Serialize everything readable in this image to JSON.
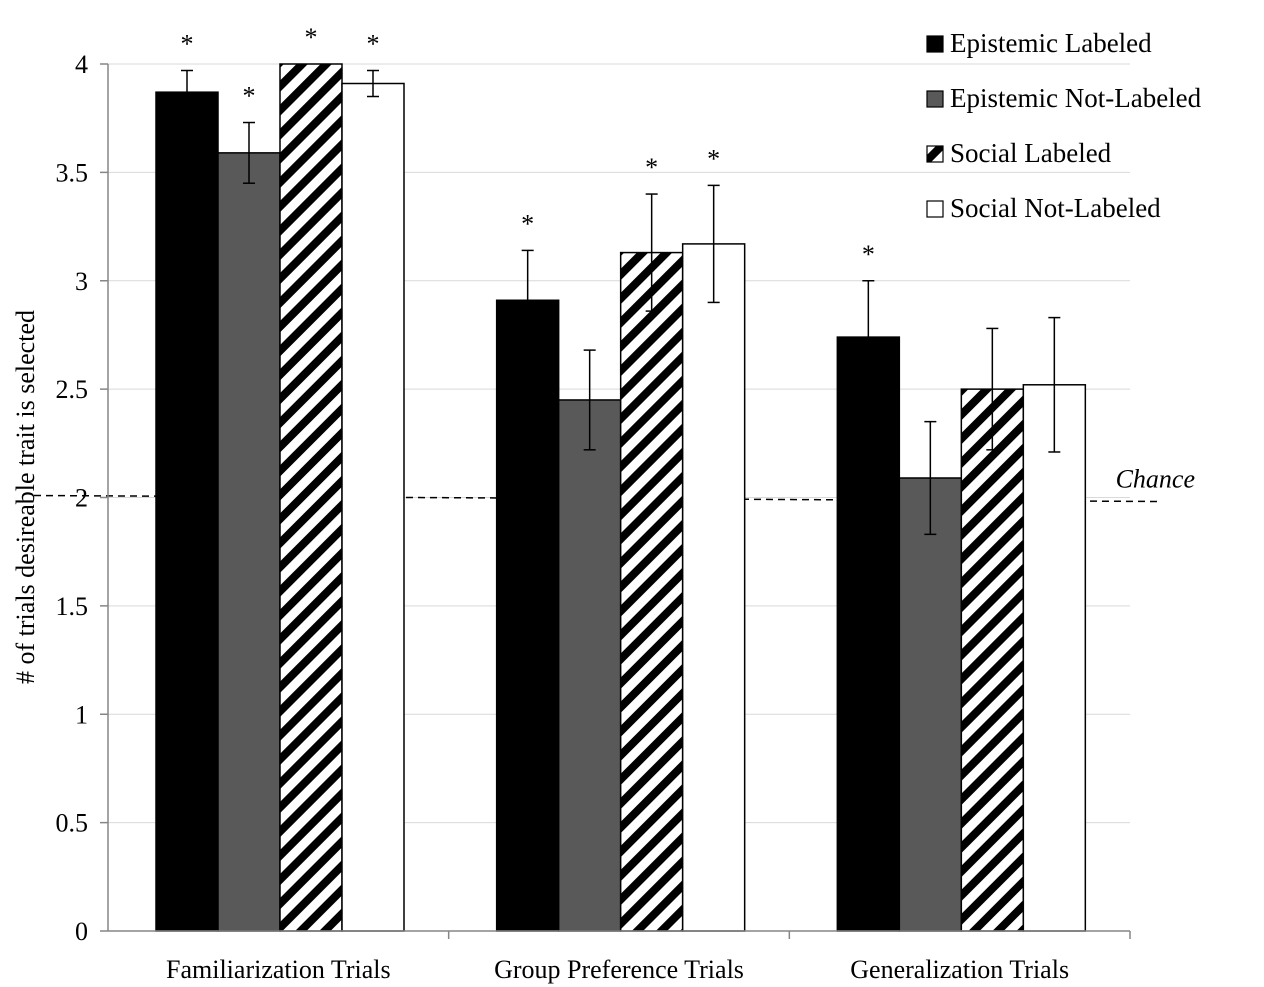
{
  "chart_data": {
    "type": "bar",
    "title": "",
    "xlabel": "",
    "ylabel": "# of trials desireable trait is selected",
    "ylim": [
      0,
      4
    ],
    "yticks": [
      0,
      0.5,
      1,
      1.5,
      2,
      2.5,
      3,
      3.5,
      4
    ],
    "ytick_labels": [
      "0",
      "0.5",
      "1",
      "1.5",
      "2",
      "2.5",
      "3",
      "3.5",
      "4"
    ],
    "grid": true,
    "legend_position": "top-right",
    "categories": [
      "Familiarization Trials",
      "Group Preference Trials",
      "Generalization Trials"
    ],
    "series": [
      {
        "name": "Epistemic Labeled",
        "fill": "black",
        "color": "#000000",
        "values": [
          3.87,
          2.91,
          2.74
        ],
        "error": [
          0.1,
          0.23,
          0.26
        ],
        "significant": [
          true,
          true,
          true
        ]
      },
      {
        "name": "Epistemic Not-Labeled",
        "fill": "gray",
        "color": "#595959",
        "values": [
          3.59,
          2.45,
          2.09
        ],
        "error": [
          0.14,
          0.23,
          0.26
        ],
        "significant": [
          true,
          false,
          false
        ]
      },
      {
        "name": "Social Labeled",
        "fill": "diagonal-stripes",
        "color": "#000000",
        "values": [
          4.0,
          3.13,
          2.5
        ],
        "error": [
          0.0,
          0.27,
          0.28
        ],
        "significant": [
          true,
          true,
          false
        ]
      },
      {
        "name": "Social Not-Labeled",
        "fill": "white",
        "color": "#ffffff",
        "values": [
          3.91,
          3.17,
          2.52
        ],
        "error": [
          0.06,
          0.27,
          0.31
        ],
        "significant": [
          true,
          true,
          false
        ]
      }
    ],
    "significance_marker": "*",
    "reference_line": {
      "label": "Chance",
      "value": 2,
      "style": "dashed"
    }
  }
}
